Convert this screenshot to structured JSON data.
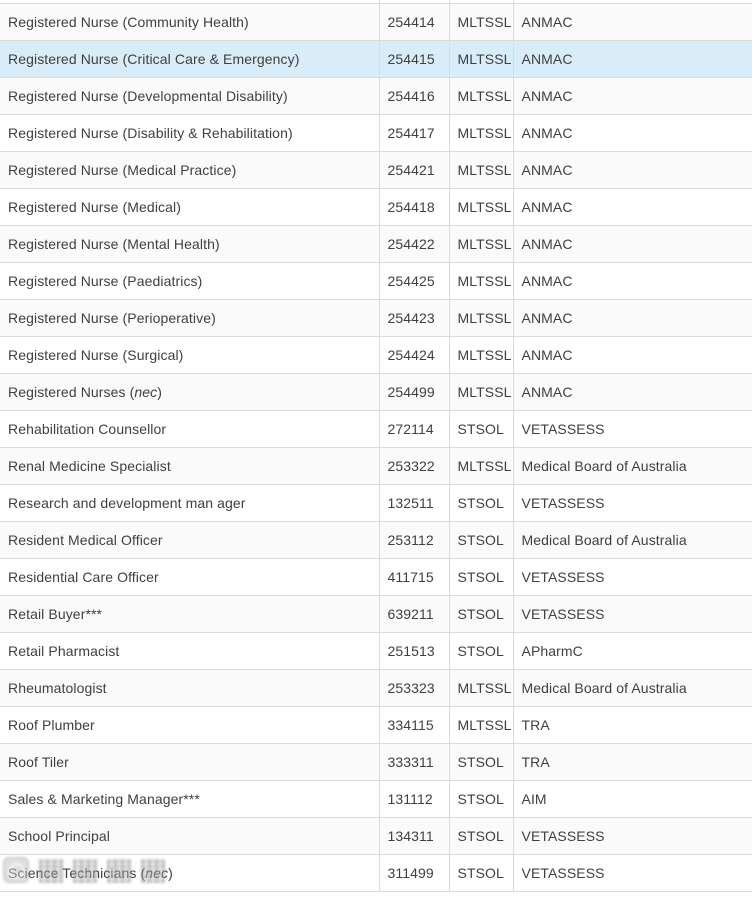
{
  "colors": {
    "row_highlight": "#d9edf8",
    "row_zebra": "#fafafa",
    "row_plain": "#ffffff",
    "cell_border": "#dbdbdb",
    "text": "#3f3f3f",
    "watermark_gray": "#ababab"
  },
  "table": {
    "rows": [
      {
        "occupation": [
          {
            "text": "Registered Nurse (Community Health)"
          }
        ],
        "code": "254414",
        "list": "MLTSSL",
        "authority": "ANMAC"
      },
      {
        "occupation": [
          {
            "text": "Registered Nurse (Critical Care & Emergency)"
          }
        ],
        "code": "254415",
        "list": "MLTSSL",
        "authority": "ANMAC",
        "highlighted": true
      },
      {
        "occupation": [
          {
            "text": "Registered Nurse (Developmental Disability)"
          }
        ],
        "code": "254416",
        "list": "MLTSSL",
        "authority": "ANMAC"
      },
      {
        "occupation": [
          {
            "text": "Registered Nurse (Disability & Rehabilitation)"
          }
        ],
        "code": "254417",
        "list": "MLTSSL",
        "authority": "ANMAC"
      },
      {
        "occupation": [
          {
            "text": "Registered Nurse (Medical Practice)"
          }
        ],
        "code": "254421",
        "list": "MLTSSL",
        "authority": "ANMAC"
      },
      {
        "occupation": [
          {
            "text": "Registered Nurse (Medical)"
          }
        ],
        "code": "254418",
        "list": "MLTSSL",
        "authority": "ANMAC"
      },
      {
        "occupation": [
          {
            "text": "Registered Nurse (Mental Health)"
          }
        ],
        "code": "254422",
        "list": "MLTSSL",
        "authority": "ANMAC"
      },
      {
        "occupation": [
          {
            "text": "Registered Nurse (Paediatrics)"
          }
        ],
        "code": "254425",
        "list": "MLTSSL",
        "authority": "ANMAC"
      },
      {
        "occupation": [
          {
            "text": "Registered Nurse (Perioperative)"
          }
        ],
        "code": "254423",
        "list": "MLTSSL",
        "authority": "ANMAC"
      },
      {
        "occupation": [
          {
            "text": "Registered Nurse (Surgical)"
          }
        ],
        "code": "254424",
        "list": "MLTSSL",
        "authority": "ANMAC"
      },
      {
        "occupation": [
          {
            "text": "Registered Nurses ("
          },
          {
            "text": "nec",
            "italic": true
          },
          {
            "text": ")"
          }
        ],
        "code": "254499",
        "list": "MLTSSL",
        "authority": "ANMAC"
      },
      {
        "occupation": [
          {
            "text": "Rehabilitation Counsellor"
          }
        ],
        "code": "272114",
        "list": "STSOL",
        "authority": "VETASSESS"
      },
      {
        "occupation": [
          {
            "text": "Renal Medicine Specialist"
          }
        ],
        "code": "253322",
        "list": "MLTSSL",
        "authority": "Medical Board of Australia"
      },
      {
        "occupation": [
          {
            "text": "Research and development man ager"
          }
        ],
        "code": "132511",
        "list": "STSOL",
        "authority": "VETASSESS"
      },
      {
        "occupation": [
          {
            "text": "Resident Medical Officer"
          }
        ],
        "code": "253112",
        "list": "STSOL",
        "authority": "Medical Board of Australia"
      },
      {
        "occupation": [
          {
            "text": "Residential Care Officer"
          }
        ],
        "code": "411715",
        "list": "STSOL",
        "authority": "VETASSESS"
      },
      {
        "occupation": [
          {
            "text": "Retail Buyer***"
          }
        ],
        "code": "639211",
        "list": "STSOL",
        "authority": "VETASSESS"
      },
      {
        "occupation": [
          {
            "text": "Retail Pharmacist"
          }
        ],
        "code": "251513",
        "list": "STSOL",
        "authority": "APharmC"
      },
      {
        "occupation": [
          {
            "text": "Rheumatologist"
          }
        ],
        "code": "253323",
        "list": "MLTSSL",
        "authority": "Medical Board of Australia"
      },
      {
        "occupation": [
          {
            "text": "Roof Plumber"
          }
        ],
        "code": "334115",
        "list": "MLTSSL",
        "authority": "TRA"
      },
      {
        "occupation": [
          {
            "text": "Roof Tiler"
          }
        ],
        "code": "333311",
        "list": "STSOL",
        "authority": "TRA"
      },
      {
        "occupation": [
          {
            "text": "Sales & Marketing Manager***"
          }
        ],
        "code": "131112",
        "list": "STSOL",
        "authority": "AIM"
      },
      {
        "occupation": [
          {
            "text": "School Principal"
          }
        ],
        "code": "134311",
        "list": "STSOL",
        "authority": "VETASSESS"
      },
      {
        "occupation": [
          {
            "text": "Science Technicians ("
          },
          {
            "text": "nec",
            "italic": true
          },
          {
            "text": ")"
          }
        ],
        "code": "311499",
        "list": "STSOL",
        "authority": "VETASSESS"
      }
    ]
  }
}
